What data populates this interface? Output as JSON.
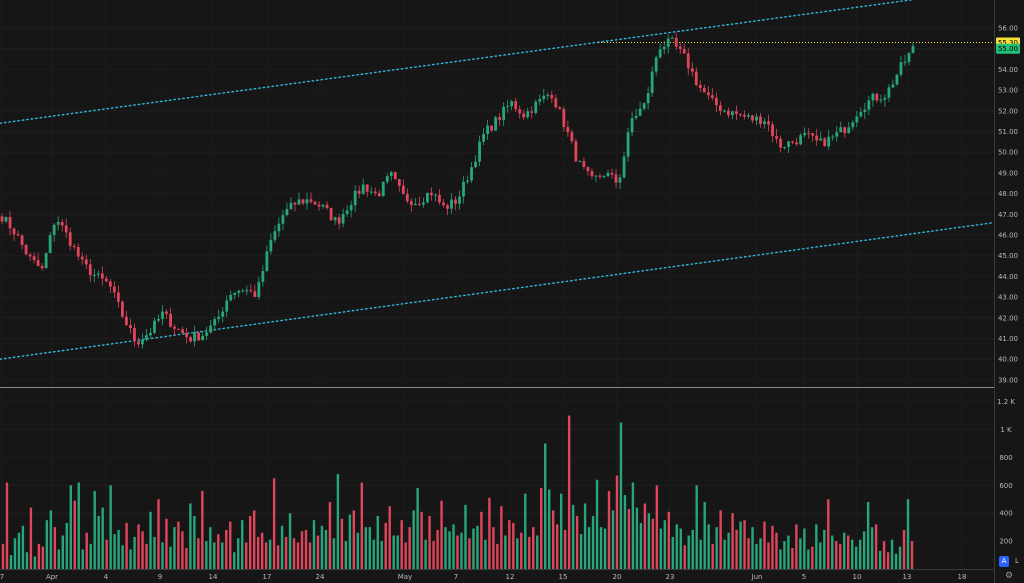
{
  "chart_data": {
    "type": "candlestick",
    "price_axis": {
      "ticks": [
        "56.00",
        "55.00",
        "54.00",
        "53.00",
        "52.00",
        "51.00",
        "50.00",
        "49.00",
        "48.00",
        "47.00",
        "46.00",
        "45.00",
        "44.00",
        "43.00",
        "42.00",
        "41.00",
        "40.00",
        "39.00"
      ],
      "ylim": [
        38.6,
        56.6
      ]
    },
    "volume_axis": {
      "ticks": [
        "1.2 K",
        "1 K",
        "800",
        "600",
        "400",
        "200"
      ],
      "ylim": [
        0,
        1250
      ]
    },
    "date_labels": [
      "7",
      "Apr",
      "4",
      "9",
      "14",
      "17",
      "24",
      "May",
      "7",
      "12",
      "15",
      "20",
      "23",
      "Jun",
      "5",
      "10",
      "13",
      "18"
    ],
    "price_tags": [
      {
        "value": 55.3,
        "label": "55.30",
        "color": "#f7e13c"
      },
      {
        "value": 55.0,
        "label": "55.00",
        "color": "#22c07a"
      }
    ],
    "channel_lines": [
      {
        "name": "upper",
        "color": "#2fb8d8",
        "start_price": 51.4,
        "end_price": 57.9
      },
      {
        "name": "lower",
        "color": "#2fb8d8",
        "start_price": 40.0,
        "end_price": 46.6
      }
    ],
    "horizontal_line": {
      "value": 55.3,
      "color": "#f7e13c"
    },
    "up_color": "#26a67a",
    "down_color": "#e0455a",
    "key_closes": [
      46.9,
      46.1,
      44.9,
      44.3,
      46.9,
      45.8,
      44.6,
      44.0,
      43.6,
      42.1,
      40.8,
      41.3,
      42.2,
      41.5,
      41.0,
      41.2,
      41.8,
      43.2,
      43.4,
      43.1,
      45.6,
      47.0,
      47.6,
      47.7,
      47.3,
      46.6,
      47.6,
      48.4,
      47.9,
      48.9,
      47.8,
      47.6,
      48.1,
      47.3,
      47.7,
      49.2,
      50.9,
      51.6,
      52.4,
      51.8,
      52.4,
      52.9,
      51.3,
      49.5,
      48.6,
      49.0,
      48.5,
      51.6,
      52.3,
      55.1,
      55.3,
      54.5,
      53.2,
      52.4,
      52.0,
      51.8,
      51.6,
      51.6,
      50.3,
      50.5,
      50.8,
      50.4,
      50.7,
      51.2,
      52.1,
      52.6,
      52.8,
      54.0,
      55.0
    ],
    "volume_series": [
      180,
      620,
      100,
      220,
      260,
      310,
      120,
      440,
      90,
      180,
      160,
      350,
      420,
      300,
      140,
      240,
      330,
      600,
      490,
      620,
      140,
      260,
      180,
      560,
      380,
      440,
      210,
      600,
      250,
      280,
      170,
      330,
      140,
      230,
      320,
      270,
      180,
      410,
      230,
      500,
      190,
      360,
      160,
      300,
      340,
      270,
      150,
      470,
      380,
      220,
      560,
      200,
      300,
      190,
      250,
      190,
      280,
      340,
      120,
      220,
      350,
      190,
      380,
      420,
      230,
      260,
      190,
      210,
      650,
      170,
      310,
      230,
      400,
      220,
      190,
      270,
      280,
      190,
      350,
      240,
      310,
      280,
      480,
      220,
      680,
      360,
      200,
      390,
      420,
      260,
      620,
      300,
      300,
      210,
      380,
      200,
      330,
      450,
      240,
      240,
      350,
      190,
      300,
      420,
      580,
      410,
      210,
      380,
      200,
      280,
      490,
      300,
      270,
      320,
      240,
      260,
      460,
      220,
      290,
      310,
      410,
      210,
      510,
      300,
      180,
      450,
      240,
      350,
      330,
      220,
      260,
      540,
      230,
      300,
      240,
      580,
      900,
      570,
      420,
      320,
      540,
      280,
      1100,
      460,
      380,
      250,
      470,
      300,
      380,
      640,
      300,
      290,
      560,
      420,
      670,
      1050,
      530,
      430,
      620,
      440,
      330,
      470,
      400,
      360,
      600,
      290,
      350,
      410,
      230,
      320,
      290,
      170,
      240,
      280,
      600,
      210,
      480,
      320,
      180,
      300,
      420,
      210,
      260,
      400,
      280,
      340,
      350,
      220,
      300,
      180,
      220,
      340,
      190,
      310,
      260,
      140,
      200,
      240,
      150,
      320,
      220,
      290,
      140,
      160,
      320,
      190,
      280,
      500,
      240,
      200,
      180,
      260,
      240,
      210,
      160,
      210,
      270,
      480,
      300,
      320,
      130,
      200,
      120,
      210,
      110,
      160,
      280,
      500,
      200
    ]
  }
}
